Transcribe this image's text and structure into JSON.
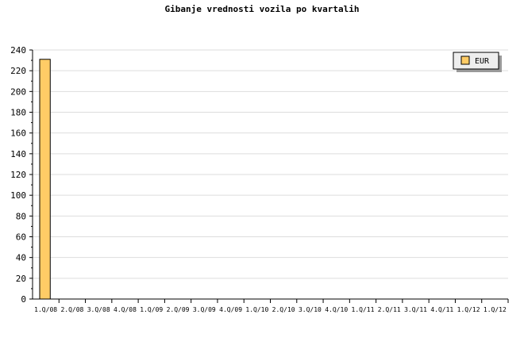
{
  "chart_data": {
    "type": "bar",
    "title": "Gibanje vrednosti vozila po kvartalih",
    "xlabel": "",
    "ylabel": "",
    "ylim": [
      0,
      240
    ],
    "yticks": [
      0,
      20,
      40,
      60,
      80,
      100,
      120,
      140,
      160,
      180,
      200,
      220,
      240
    ],
    "grid": true,
    "legend_position": "top-right",
    "categories": [
      "1.Q/08",
      "2.Q/08",
      "3.Q/08",
      "4.Q/08",
      "1.Q/09",
      "2.Q/09",
      "3.Q/09",
      "4.Q/09",
      "1.Q/10",
      "2.Q/10",
      "3.Q/10",
      "4.Q/10",
      "1.Q/11",
      "2.Q/11",
      "3.Q/11",
      "4.Q/11",
      "1.Q/12",
      "1.Q/12"
    ],
    "series": [
      {
        "name": "EUR",
        "color": "#ffcc66",
        "values": [
          231,
          0,
          0,
          0,
          0,
          0,
          0,
          0,
          0,
          0,
          0,
          0,
          0,
          0,
          0,
          0,
          0,
          0
        ]
      }
    ]
  }
}
